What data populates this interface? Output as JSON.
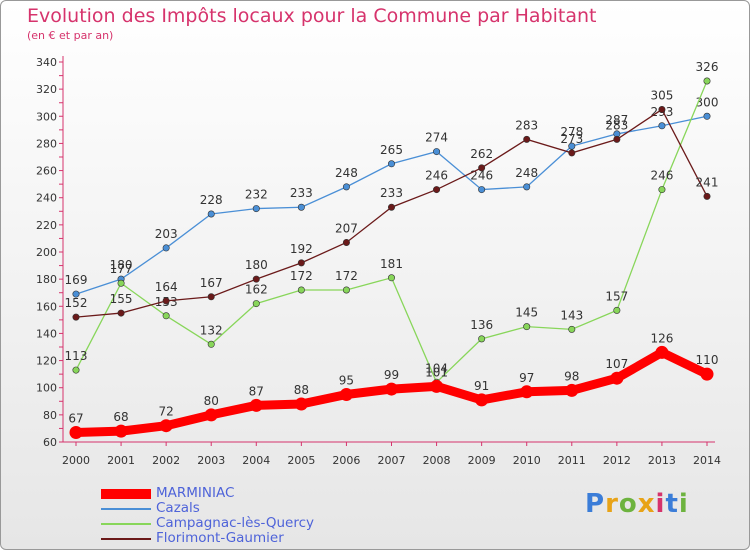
{
  "title": "Evolution des Impôts locaux pour la Commune par Habitant",
  "subtitle": "(en € et par an)",
  "logo": {
    "text": "Proxiti",
    "letter_colors": [
      "#3b7dd8",
      "#e8a317",
      "#6db33f",
      "#e8a317",
      "#d6336c",
      "#3b7dd8",
      "#6db33f"
    ]
  },
  "chart_data": {
    "type": "line",
    "x": [
      "2000",
      "2001",
      "2002",
      "2003",
      "2004",
      "2005",
      "2006",
      "2007",
      "2008",
      "2009",
      "2010",
      "2011",
      "2012",
      "2013",
      "2014"
    ],
    "ylim": [
      60,
      340
    ],
    "yticks": [
      60,
      80,
      100,
      120,
      140,
      160,
      180,
      200,
      220,
      240,
      260,
      280,
      300,
      320,
      340
    ],
    "grid": false,
    "legend_position": "bottom-left",
    "series": [
      {
        "name": "MARMINIAC",
        "color": "#ff0000",
        "emphasis": true,
        "values": [
          67,
          68,
          72,
          80,
          87,
          88,
          95,
          99,
          101,
          91,
          97,
          98,
          107,
          126,
          110
        ]
      },
      {
        "name": "Cazals",
        "color": "#4a8fd6",
        "emphasis": false,
        "values": [
          169,
          180,
          203,
          228,
          232,
          233,
          248,
          265,
          274,
          246,
          248,
          278,
          287,
          293,
          300
        ]
      },
      {
        "name": "Campagnac-lès-Quercy",
        "color": "#88d65a",
        "emphasis": false,
        "values": [
          113,
          177,
          153,
          132,
          162,
          172,
          172,
          181,
          104,
          136,
          145,
          143,
          157,
          246,
          326
        ]
      },
      {
        "name": "Florimont-Gaumier",
        "color": "#6b1a1a",
        "emphasis": false,
        "values": [
          152,
          155,
          164,
          167,
          180,
          192,
          207,
          233,
          246,
          262,
          283,
          273,
          283,
          305,
          241
        ]
      }
    ]
  }
}
